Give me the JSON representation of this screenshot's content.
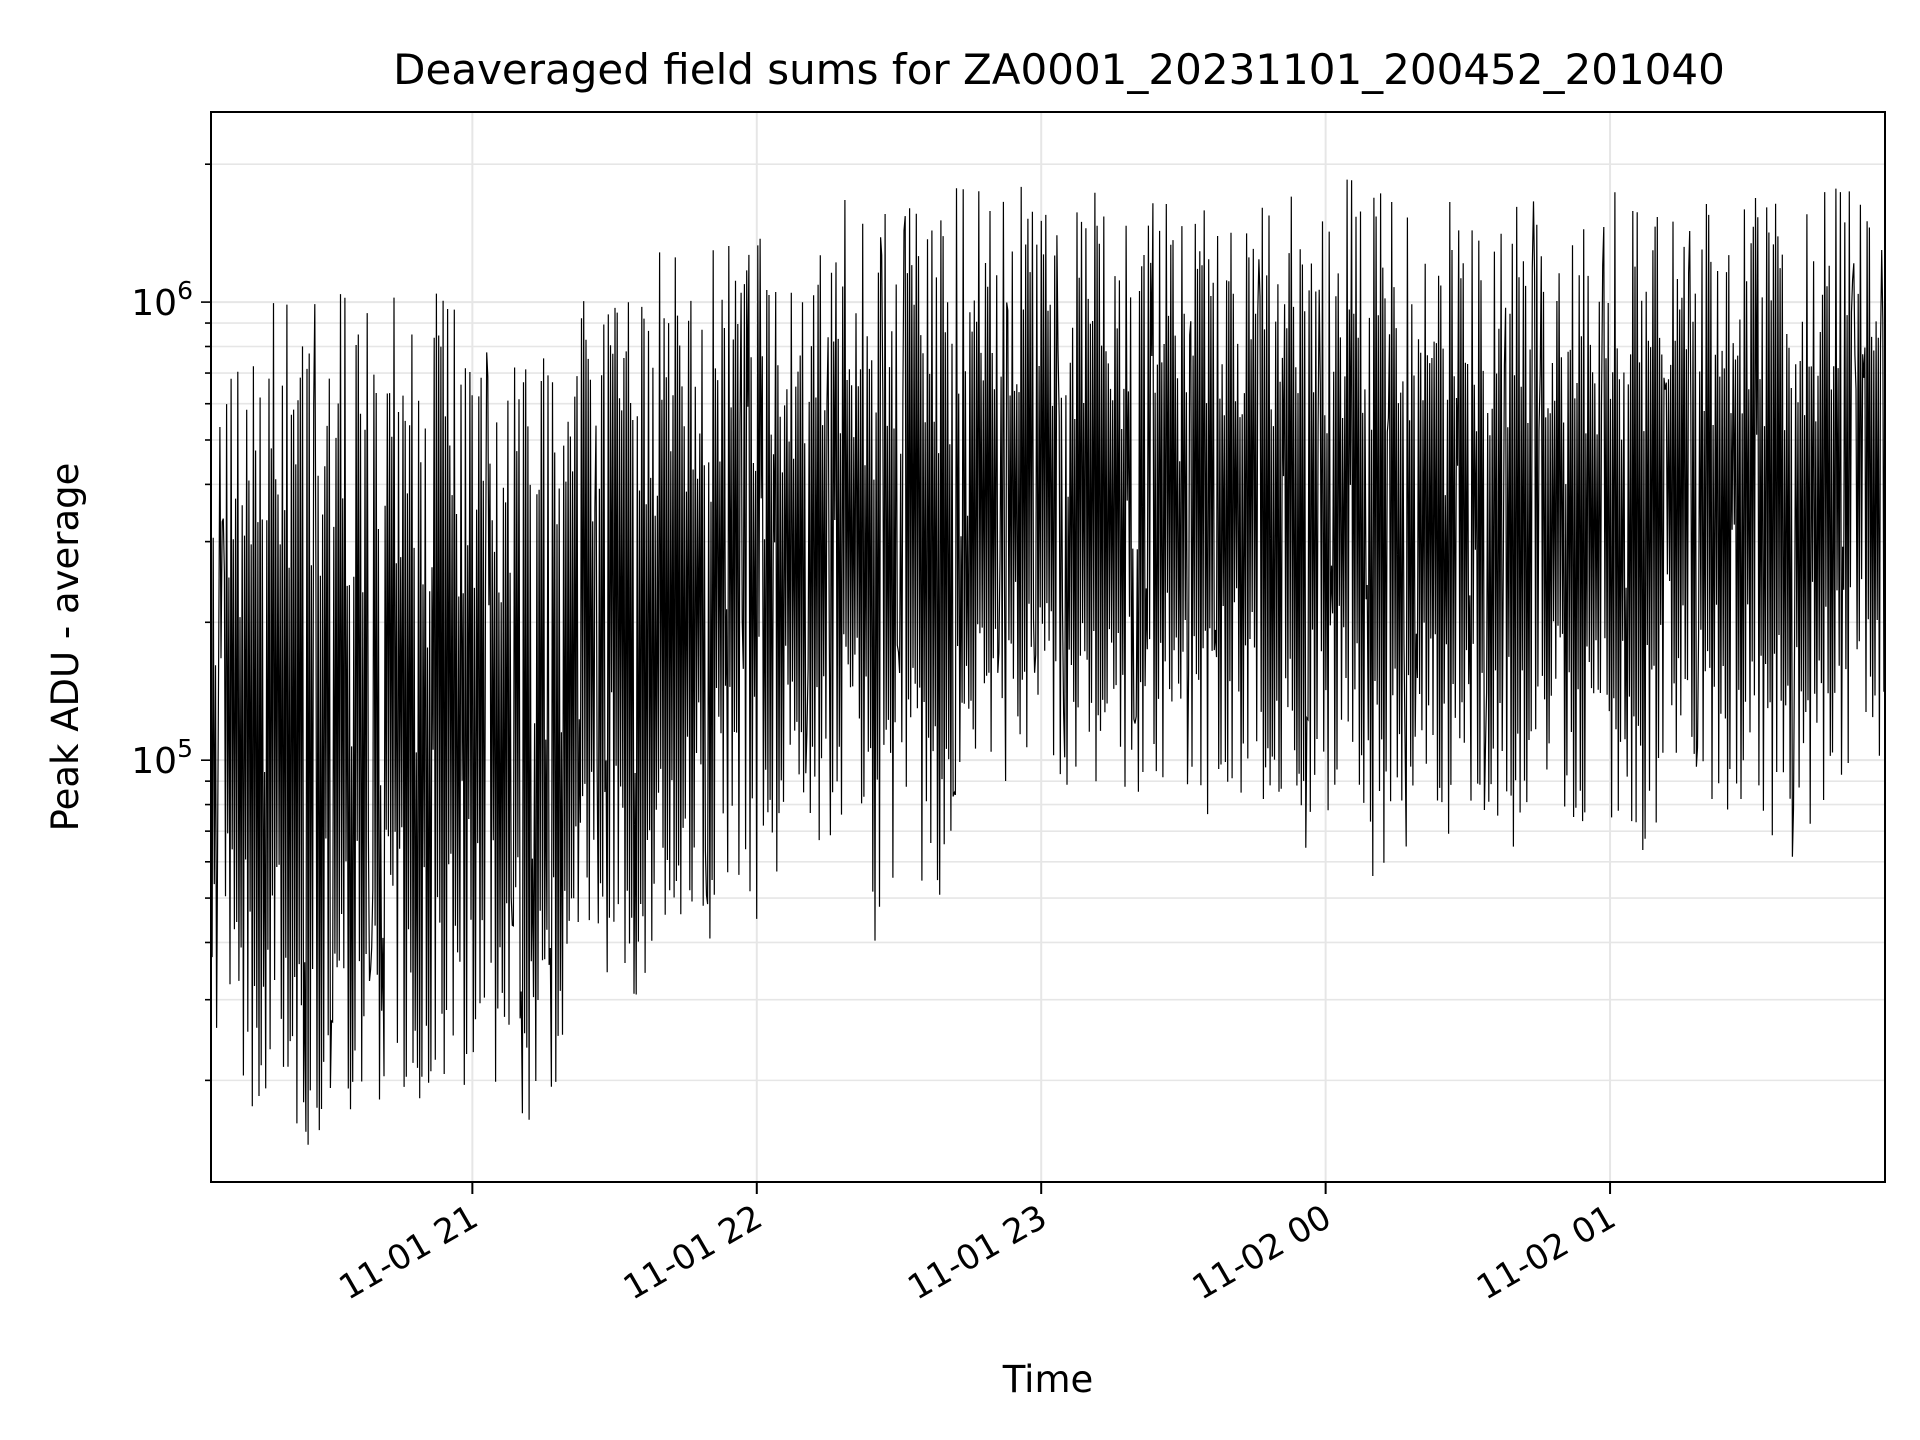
{
  "chart_data": {
    "type": "line",
    "title": "Deaveraged field sums for ZA0001_20231101_200452_201040",
    "xlabel": "Time",
    "ylabel": "Peak ADU - average",
    "yscale": "log",
    "ylim": [
      12000,
      2600000
    ],
    "x_range": [
      "2023-11-01 20:04:52",
      "2023-11-02 01:58:00"
    ],
    "x_ticks": [
      {
        "value": "2023-11-01 21:00",
        "label": "11-01 21"
      },
      {
        "value": "2023-11-01 22:00",
        "label": "11-01 22"
      },
      {
        "value": "2023-11-01 23:00",
        "label": "11-01 23"
      },
      {
        "value": "2023-11-02 00:00",
        "label": "11-02 00"
      },
      {
        "value": "2023-11-02 01:00",
        "label": "11-02 01"
      }
    ],
    "y_ticks": [
      {
        "value": 100000,
        "base": "10",
        "exp": "5"
      },
      {
        "value": 1000000,
        "base": "10",
        "exp": "6"
      }
    ],
    "grid": true,
    "line_color": "#000000",
    "series": [
      {
        "x": [
          "2023-11-01 20:05",
          "2023-11-01 20:10",
          "2023-11-01 20:15",
          "2023-11-01 20:20",
          "2023-11-01 20:25",
          "2023-11-01 20:30",
          "2023-11-01 20:35",
          "2023-11-01 20:40",
          "2023-11-01 20:45",
          "2023-11-01 20:50",
          "2023-11-01 20:55",
          "2023-11-01 21:00",
          "2023-11-01 21:05",
          "2023-11-01 21:10",
          "2023-11-01 21:15",
          "2023-11-01 21:20",
          "2023-11-01 21:25",
          "2023-11-01 21:30",
          "2023-11-01 21:35",
          "2023-11-01 21:40",
          "2023-11-01 21:45",
          "2023-11-01 21:50",
          "2023-11-01 21:55",
          "2023-11-01 22:00",
          "2023-11-01 22:05",
          "2023-11-01 22:10",
          "2023-11-01 22:15",
          "2023-11-01 22:20",
          "2023-11-01 22:25",
          "2023-11-01 22:30",
          "2023-11-01 22:35",
          "2023-11-01 22:40",
          "2023-11-01 22:45",
          "2023-11-01 22:50",
          "2023-11-01 22:55",
          "2023-11-01 23:00",
          "2023-11-01 23:05",
          "2023-11-01 23:10",
          "2023-11-01 23:15",
          "2023-11-01 23:20",
          "2023-11-01 23:25",
          "2023-11-01 23:30",
          "2023-11-01 23:35",
          "2023-11-01 23:40",
          "2023-11-01 23:45",
          "2023-11-01 23:50",
          "2023-11-01 23:55",
          "2023-11-02 00:00",
          "2023-11-02 00:05",
          "2023-11-02 00:10",
          "2023-11-02 00:15",
          "2023-11-02 00:20",
          "2023-11-02 00:25",
          "2023-11-02 00:30",
          "2023-11-02 00:35",
          "2023-11-02 00:40",
          "2023-11-02 00:45",
          "2023-11-02 00:50",
          "2023-11-02 00:55",
          "2023-11-02 01:00",
          "2023-11-02 01:05",
          "2023-11-02 01:10",
          "2023-11-02 01:15",
          "2023-11-02 01:20",
          "2023-11-02 01:25",
          "2023-11-02 01:30",
          "2023-11-02 01:35",
          "2023-11-02 01:40",
          "2023-11-02 01:45",
          "2023-11-02 01:50",
          "2023-11-02 01:55"
        ],
        "max": [
          420000,
          1100000,
          1000000,
          1150000,
          1050000,
          1000000,
          1150000,
          1050000,
          1020000,
          1050000,
          1150000,
          1050000,
          1030000,
          1020000,
          950000,
          1000000,
          1100000,
          1050000,
          1250000,
          1300000,
          1350000,
          1300000,
          1400000,
          1400000,
          1450000,
          1350000,
          1600000,
          1700000,
          1600000,
          1700000,
          1750000,
          1850000,
          1800000,
          1700000,
          1750000,
          2000000,
          1700000,
          1800000,
          1700000,
          1750000,
          1750000,
          1800000,
          1900000,
          1750000,
          1850000,
          1700000,
          1700000,
          1750000,
          1900000,
          1700000,
          1800000,
          1700000,
          1650000,
          1750000,
          1700000,
          1800000,
          1650000,
          1700000,
          1700000,
          1800000,
          1700000,
          1750000,
          1800000,
          1650000,
          1700000,
          1850000,
          1700000,
          1650000,
          1750000,
          1800000,
          1650000
        ],
        "min": [
          21000,
          19000,
          17000,
          15000,
          14000,
          17000,
          17000,
          18000,
          16000,
          17000,
          16000,
          19000,
          18000,
          16000,
          17000,
          20000,
          28000,
          35000,
          30000,
          33000,
          45000,
          40000,
          55000,
          45000,
          55000,
          70000,
          65000,
          75000,
          38000,
          55000,
          50000,
          48000,
          60000,
          80000,
          90000,
          85000,
          80000,
          75000,
          70000,
          85000,
          80000,
          85000,
          75000,
          80000,
          85000,
          65000,
          60000,
          70000,
          70000,
          48000,
          60000,
          70000,
          65000,
          60000,
          50000,
          65000,
          70000,
          75000,
          70000,
          60000,
          55000,
          65000,
          75000,
          80000,
          75000,
          80000,
          65000,
          60000,
          75000,
          90000,
          100000
        ]
      }
    ]
  }
}
